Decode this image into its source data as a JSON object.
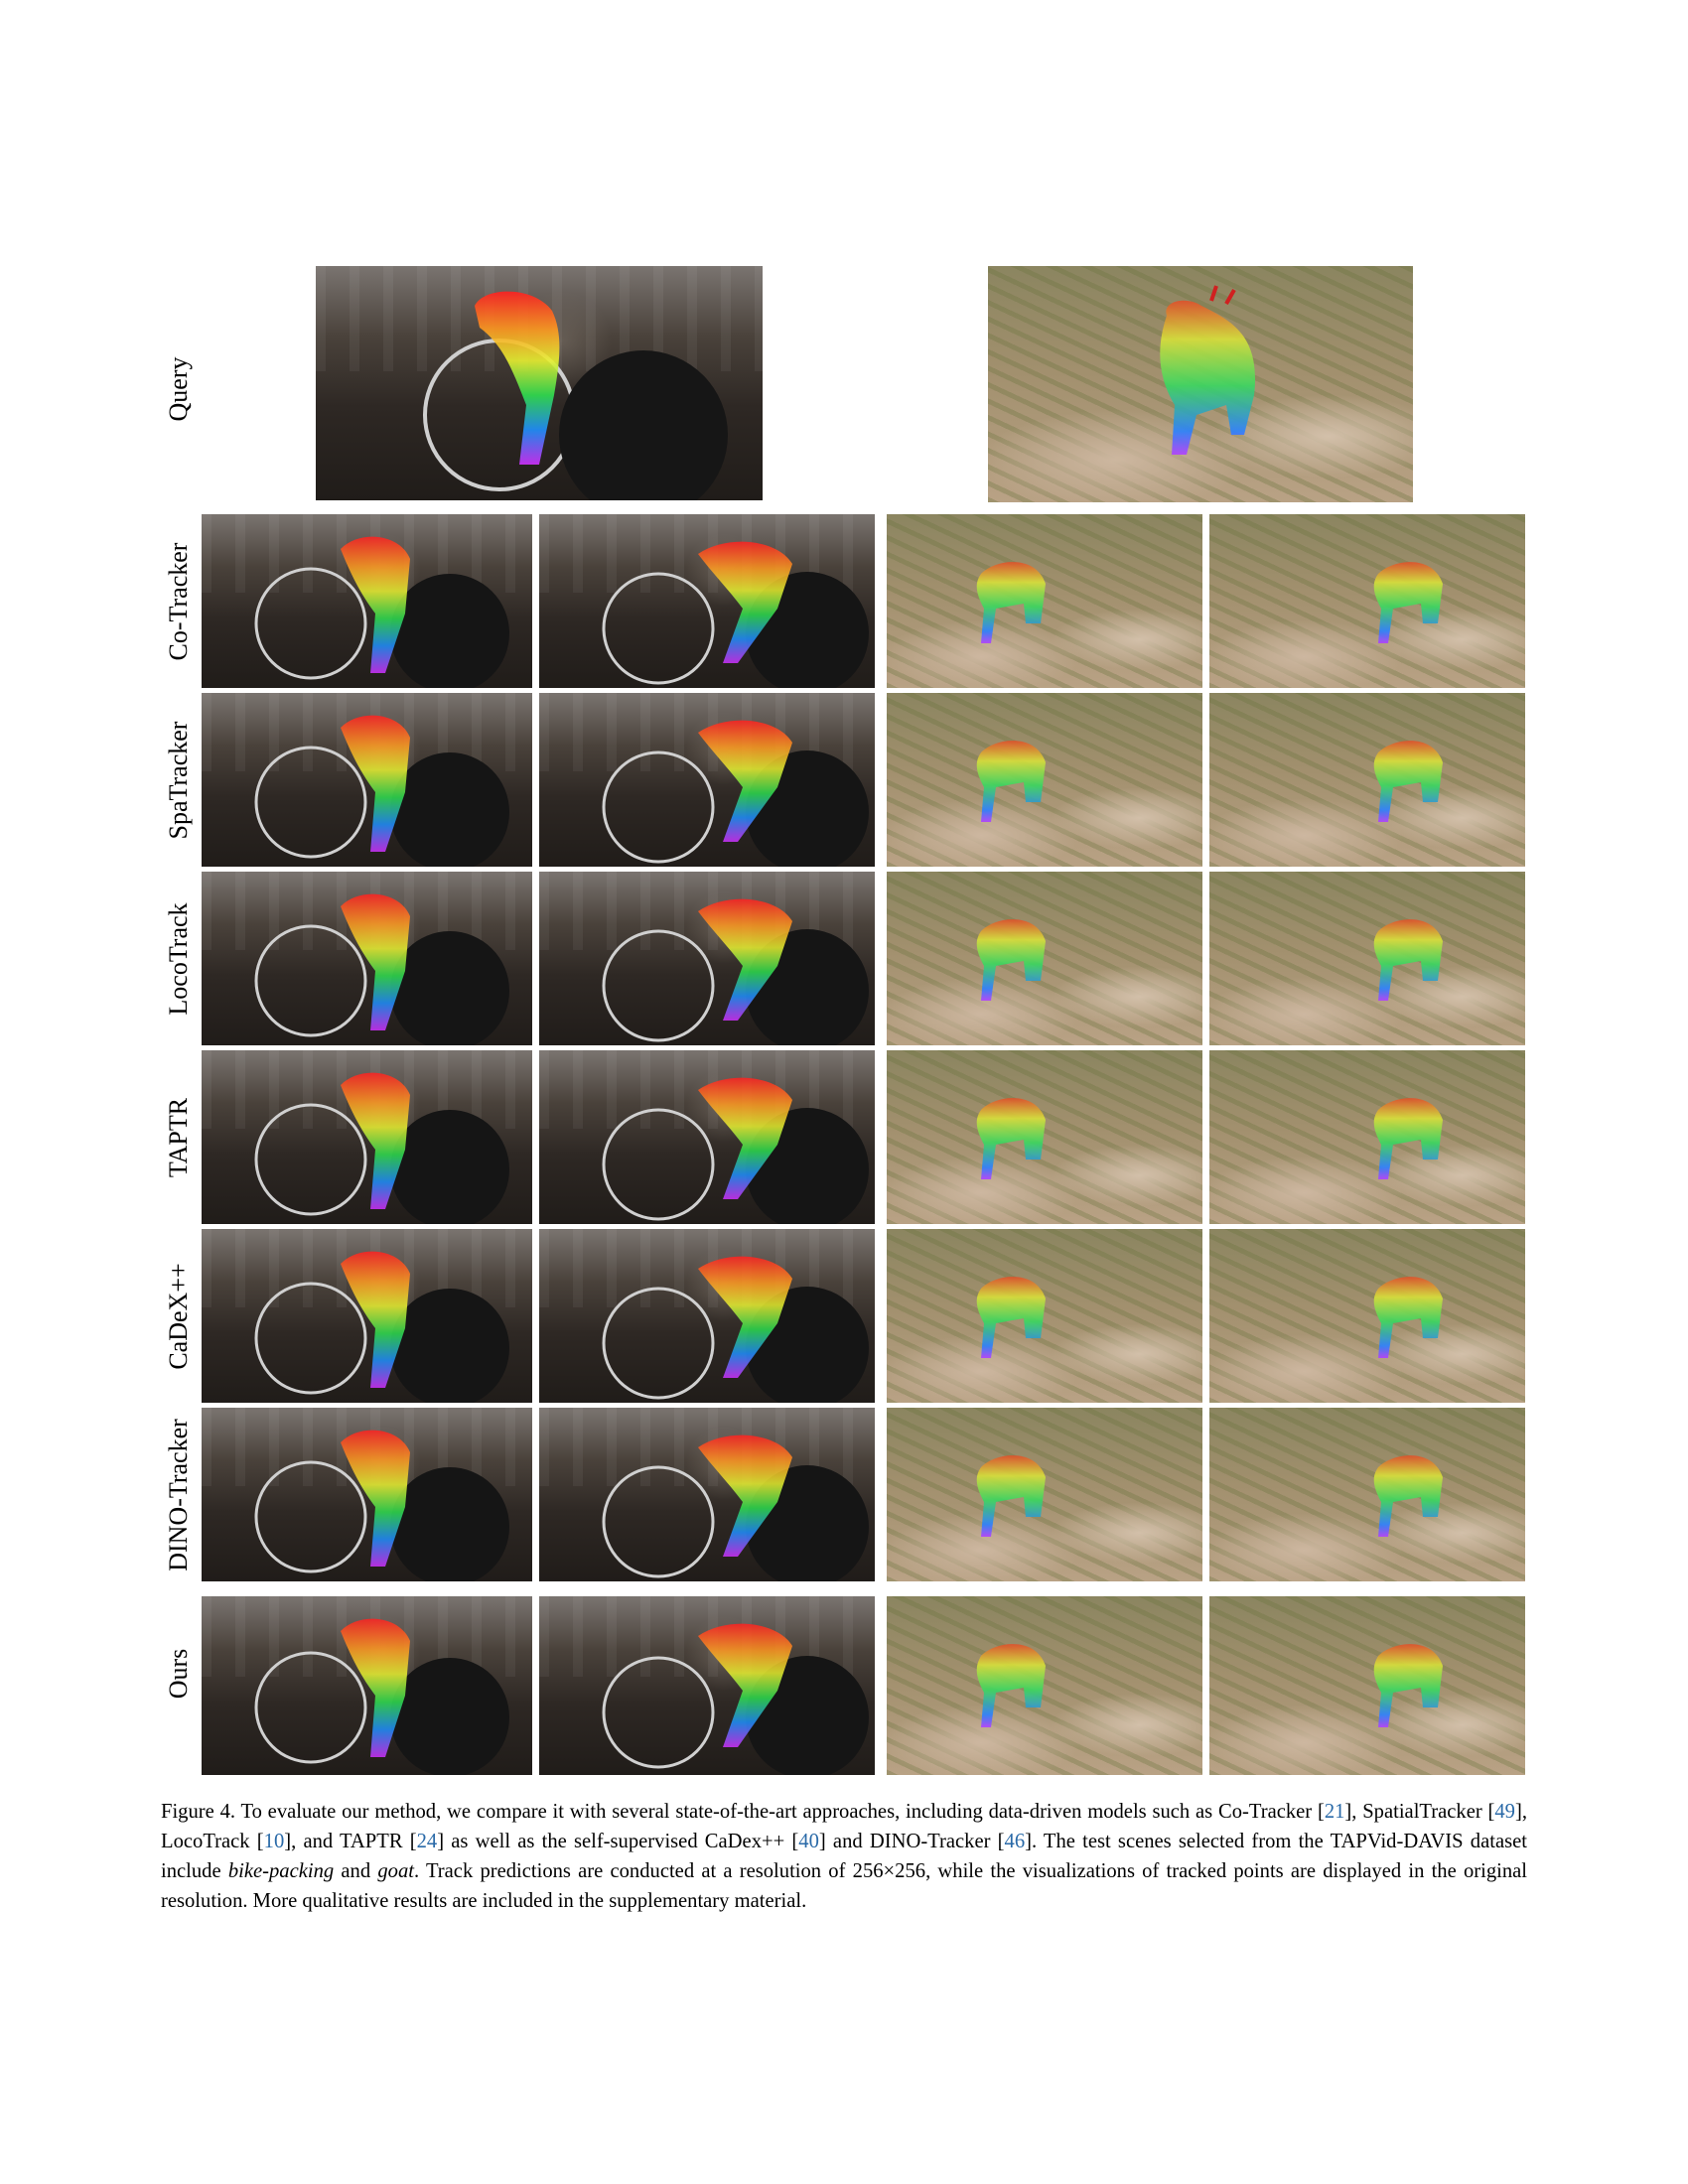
{
  "figure": {
    "row_labels": {
      "query": "Query",
      "cotracker": "Co-Tracker",
      "spatracker": "SpaTracker",
      "locotrack": "LocoTrack",
      "taptr": "TAPTR",
      "cadex": "CaDeX++",
      "dinotracker": "DINO-Tracker",
      "ours": "Ours"
    }
  },
  "caption": {
    "prefix": "Figure 4.",
    "t1": "  To evaluate our method, we compare it with several state-of-the-art approaches, including data-driven models such as Co-Tracker [",
    "r1": "21",
    "t2": "], SpatialTracker [",
    "r2": "49",
    "t3": "], LocoTrack [",
    "r3": "10",
    "t4": "], and TAPTR [",
    "r4": "24",
    "t5": "] as well as the self-supervised CaDex++ [",
    "r5": "40",
    "t6": "] and DINO-Tracker [",
    "r6": "46",
    "t7": "]. The test scenes selected from the TAPVid-DAVIS dataset include ",
    "e1": "bike-packing",
    "t8": " and ",
    "e2": "goat",
    "t9": ". Track predictions are conducted at a resolution of 256×256, while the visualizations of tracked points are displayed in the original resolution. More qualitative results are included in the supplementary material."
  }
}
